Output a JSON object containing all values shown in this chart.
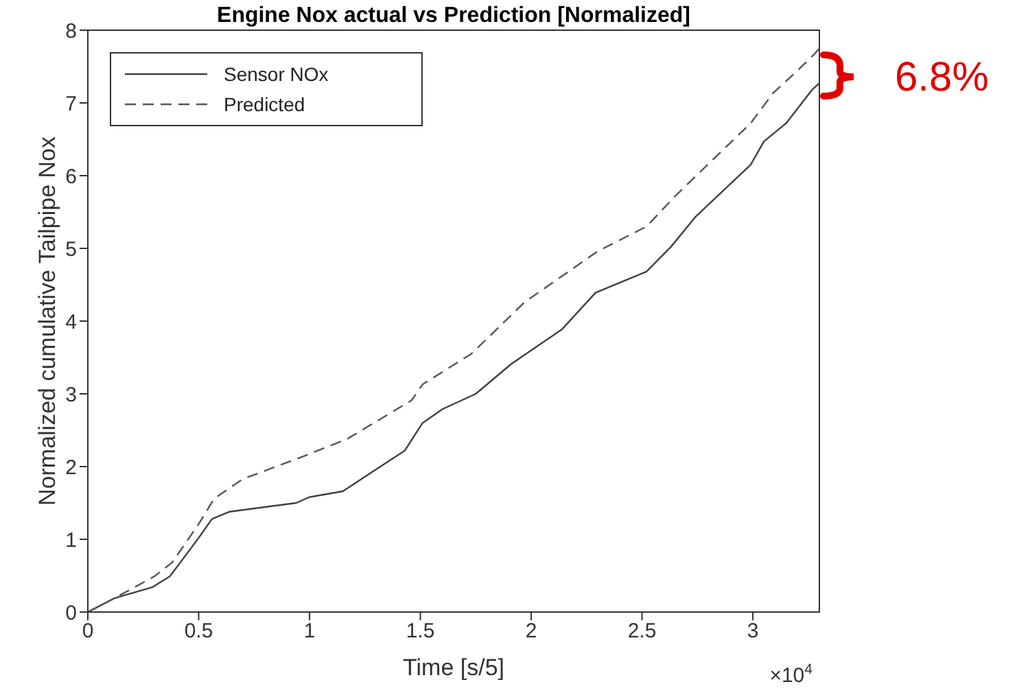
{
  "chart_data": {
    "type": "line",
    "title": "Engine Nox actual vs Prediction [Normalized]",
    "xlabel": "Time [s/5]",
    "ylabel": "Normalized cumulative Tailpipe Nox",
    "annotations": [
      "×10$^{4}$",
      "6.8%"
    ],
    "xlim": [
      0,
      3.3
    ],
    "xticks": [
      0,
      0.5,
      1,
      1.5,
      2,
      2.5,
      3
    ],
    "ylim": [
      0,
      8
    ],
    "yticks": [
      0,
      1,
      2,
      3,
      4,
      5,
      6,
      7,
      8
    ],
    "grid": false,
    "legend": "top left",
    "marker": "none",
    "series": [
      {
        "name": "Sensor NOx",
        "color": "#404040",
        "line_style": "solid",
        "x": [
          0,
          0.12,
          0.29,
          0.37,
          0.5,
          0.56,
          0.64,
          0.94,
          1.0,
          1.15,
          1.29,
          1.43,
          1.51,
          1.6,
          1.75,
          1.91,
          2.14,
          2.29,
          2.52,
          2.63,
          2.74,
          2.99,
          3.05,
          3.15,
          3.27,
          3.3
        ],
        "values": [
          0,
          0.19,
          0.34,
          0.49,
          1.02,
          1.28,
          1.38,
          1.5,
          1.58,
          1.66,
          1.94,
          2.22,
          2.6,
          2.79,
          3.0,
          3.41,
          3.89,
          4.39,
          4.68,
          5.02,
          5.43,
          6.15,
          6.47,
          6.72,
          7.19,
          7.27
        ]
      },
      {
        "name": "Predicted",
        "color": "#555555",
        "line_style": "dashed",
        "x": [
          0,
          0.12,
          0.3,
          0.38,
          0.5,
          0.57,
          0.7,
          0.98,
          1.17,
          1.46,
          1.51,
          1.73,
          1.97,
          2.3,
          2.52,
          2.65,
          2.86,
          2.99,
          3.09,
          3.21,
          3.28,
          3.3
        ],
        "values": [
          0,
          0.19,
          0.49,
          0.68,
          1.21,
          1.56,
          1.83,
          2.15,
          2.38,
          2.91,
          3.13,
          3.55,
          4.26,
          4.96,
          5.3,
          5.72,
          6.34,
          6.72,
          7.13,
          7.47,
          7.68,
          7.75
        ]
      }
    ]
  }
}
